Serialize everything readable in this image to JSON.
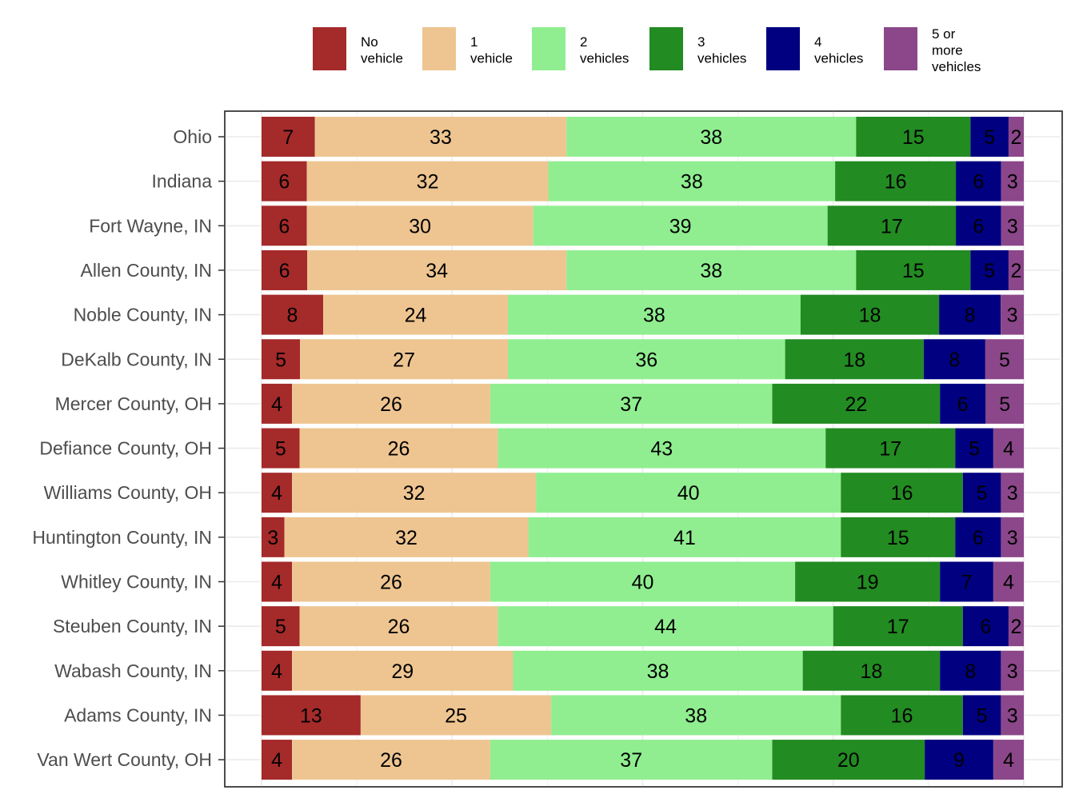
{
  "chart_data": {
    "type": "bar",
    "orientation": "horizontal",
    "stacked": true,
    "normalized_percent": true,
    "title": "",
    "xlabel": "",
    "ylabel": "",
    "xlim": [
      0,
      100
    ],
    "grid": true,
    "legend_position": "top",
    "categories": [
      "Ohio",
      "Indiana",
      "Fort Wayne, IN",
      "Allen County, IN",
      "Noble County, IN",
      "DeKalb County, IN",
      "Mercer County, OH",
      "Defiance County, OH",
      "Williams County, OH",
      "Huntington County, IN",
      "Whitley County, IN",
      "Steuben County, IN",
      "Wabash County, IN",
      "Adams County, IN",
      "Van Wert County, OH"
    ],
    "series": [
      {
        "name": "No vehicle",
        "legend_lines": [
          "No",
          "vehicle"
        ],
        "color": "#a52a2a",
        "values": [
          7,
          6,
          6,
          6,
          8,
          5,
          4,
          5,
          4,
          3,
          4,
          5,
          4,
          13,
          4
        ]
      },
      {
        "name": "1 vehicle",
        "legend_lines": [
          "1",
          "vehicle"
        ],
        "color": "#eec591",
        "values": [
          33,
          32,
          30,
          34,
          24,
          27,
          26,
          26,
          32,
          32,
          26,
          26,
          29,
          25,
          26
        ]
      },
      {
        "name": "2 vehicles",
        "legend_lines": [
          "2",
          "vehicles"
        ],
        "color": "#90ee90",
        "values": [
          38,
          38,
          39,
          38,
          38,
          36,
          37,
          43,
          40,
          41,
          40,
          44,
          38,
          38,
          37
        ]
      },
      {
        "name": "3 vehicles",
        "legend_lines": [
          "3",
          "vehicles"
        ],
        "color": "#228b22",
        "values": [
          15,
          16,
          17,
          15,
          18,
          18,
          22,
          17,
          16,
          15,
          19,
          17,
          18,
          16,
          20
        ]
      },
      {
        "name": "4 vehicles",
        "legend_lines": [
          "4",
          "vehicles"
        ],
        "color": "#000080",
        "values": [
          5,
          6,
          6,
          5,
          8,
          8,
          6,
          5,
          5,
          6,
          7,
          6,
          8,
          5,
          9
        ]
      },
      {
        "name": "5 or more vehicles",
        "legend_lines": [
          "5 or",
          "more",
          "vehicles"
        ],
        "color": "#8b4789",
        "values": [
          2,
          3,
          3,
          2,
          3,
          5,
          5,
          4,
          3,
          3,
          4,
          2,
          3,
          3,
          4
        ]
      }
    ]
  }
}
